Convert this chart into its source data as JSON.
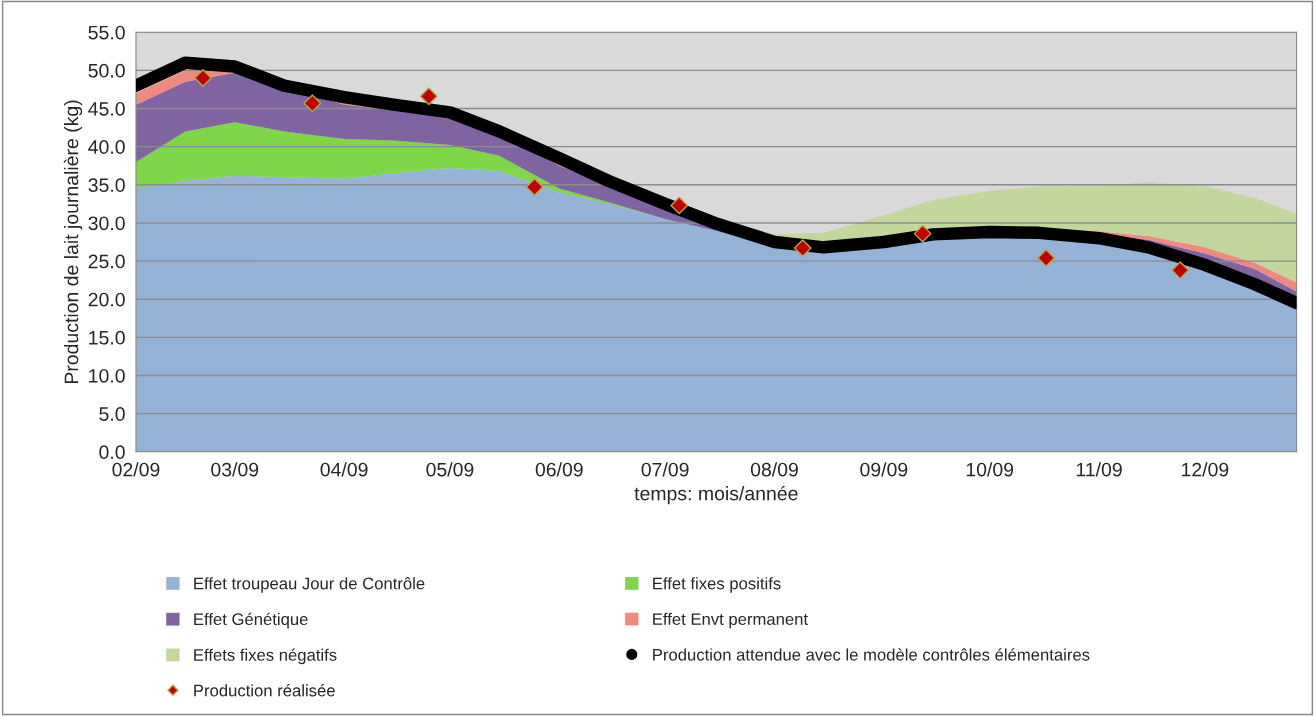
{
  "chart_data": {
    "type": "area",
    "stacked": true,
    "xlabel": "temps: mois/année",
    "ylabel": "Production de lait journalière (kg)",
    "x": [
      "2009-02-01",
      "2009-02-15",
      "2009-03-01",
      "2009-03-15",
      "2009-04-01",
      "2009-04-15",
      "2009-05-01",
      "2009-05-15",
      "2009-06-01",
      "2009-06-15",
      "2009-07-01",
      "2009-07-15",
      "2009-08-01",
      "2009-08-15",
      "2009-09-01",
      "2009-09-15",
      "2009-10-01",
      "2009-10-15",
      "2009-11-01",
      "2009-11-15",
      "2009-12-01",
      "2009-12-15",
      "2009-12-27"
    ],
    "series": [
      {
        "name": "Effet troupeau Jour de Contrôle",
        "color": "#95b3d7",
        "values": [
          34.5,
          35.5,
          36.2,
          36.0,
          35.8,
          36.5,
          37.2,
          36.8,
          34.0,
          32.5,
          30.5,
          29.0,
          27.0,
          26.0,
          27.0,
          28.0,
          28.7,
          28.8,
          28.3,
          27.3,
          25.0,
          22.5,
          19.5
        ]
      },
      {
        "name": "Effet fixes positifs",
        "color": "#7ed648",
        "values": [
          3.5,
          6.5,
          7.0,
          6.0,
          5.2,
          4.3,
          3.0,
          2.0,
          0.5,
          0.2,
          0,
          0,
          0,
          0,
          0,
          0,
          0,
          0,
          0,
          0,
          0,
          0,
          0
        ]
      },
      {
        "name": "Effet Génétique",
        "color": "#8064a2",
        "values": [
          7.5,
          6.5,
          6.5,
          6.0,
          4.5,
          4.0,
          3.7,
          3.5,
          3.0,
          2.3,
          1.8,
          1.5,
          0.8,
          0.5,
          0.3,
          0.3,
          0.3,
          0.3,
          0.3,
          0.5,
          1.0,
          1.5,
          1.5
        ]
      },
      {
        "name": "Effet Envt permanent",
        "color": "#ee8a80",
        "values": [
          1.5,
          1.5,
          1.2,
          0.7,
          0.4,
          0.3,
          0.2,
          0.2,
          0.2,
          0.2,
          0.2,
          0.2,
          0.2,
          0.2,
          0.2,
          0.2,
          0.2,
          0.2,
          0.3,
          0.5,
          0.8,
          0.8,
          1.2
        ]
      },
      {
        "name": "Effets fixes négatifs",
        "color": "#c3d69b",
        "values": [
          0,
          0,
          0,
          0,
          0,
          0,
          0,
          0,
          0,
          0,
          0,
          0,
          0.5,
          2.0,
          3.5,
          4.5,
          5.0,
          5.5,
          6.0,
          7.0,
          8.0,
          8.5,
          9.0
        ]
      },
      {
        "name": "Production attendue avec le modèle contrôles élémentaires",
        "type": "line",
        "color": "#000000",
        "values": [
          48.0,
          51.0,
          50.5,
          48.0,
          46.5,
          45.5,
          44.5,
          42.0,
          38.5,
          35.5,
          32.5,
          30.0,
          27.5,
          26.8,
          27.5,
          28.5,
          28.8,
          28.7,
          28.0,
          26.8,
          24.5,
          22.0,
          19.5
        ]
      },
      {
        "name": "Production réalisée",
        "type": "scatter",
        "color": "#c00000",
        "marker": "diamond",
        "x": [
          "2009-02-20",
          "2009-03-23",
          "2009-04-25",
          "2009-05-25",
          "2009-07-05",
          "2009-08-09",
          "2009-09-12",
          "2009-10-17",
          "2009-11-24"
        ],
        "values": [
          49.0,
          45.7,
          46.6,
          34.7,
          32.3,
          26.7,
          28.6,
          25.4,
          23.8
        ]
      }
    ],
    "xlim": [
      "2009-02-01",
      "2009-12-27"
    ],
    "xticks": [
      {
        "value": "2009-02-01",
        "label": "02/09"
      },
      {
        "value": "2009-03-01",
        "label": "03/09"
      },
      {
        "value": "2009-04-01",
        "label": "04/09"
      },
      {
        "value": "2009-05-01",
        "label": "05/09"
      },
      {
        "value": "2009-06-01",
        "label": "06/09"
      },
      {
        "value": "2009-07-01",
        "label": "07/09"
      },
      {
        "value": "2009-08-01",
        "label": "08/09"
      },
      {
        "value": "2009-09-01",
        "label": "09/09"
      },
      {
        "value": "2009-10-01",
        "label": "10/09"
      },
      {
        "value": "2009-11-01",
        "label": "11/09"
      },
      {
        "value": "2009-12-01",
        "label": "12/09"
      }
    ],
    "ylim": [
      0,
      55
    ],
    "yticks": [
      {
        "value": 0,
        "label": "0.0"
      },
      {
        "value": 5,
        "label": "5.0"
      },
      {
        "value": 10,
        "label": "10.0"
      },
      {
        "value": 15,
        "label": "15.0"
      },
      {
        "value": 20,
        "label": "20.0"
      },
      {
        "value": 25,
        "label": "25.0"
      },
      {
        "value": 30,
        "label": "30.0"
      },
      {
        "value": 35,
        "label": "35.0"
      },
      {
        "value": 40,
        "label": "40.0"
      },
      {
        "value": 45,
        "label": "45.0"
      },
      {
        "value": 50,
        "label": "50.0"
      },
      {
        "value": 55,
        "label": "55.0"
      }
    ],
    "grid": "y",
    "legend": "bottom"
  }
}
